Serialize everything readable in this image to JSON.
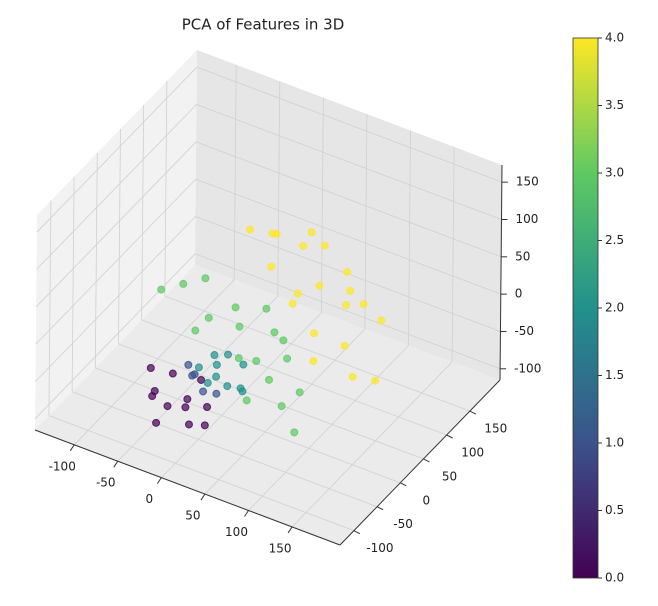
{
  "chart_data": {
    "type": "scatter3d",
    "title": "PCA of Features in 3D",
    "colormap": "viridis",
    "x": [
      -40,
      -20,
      0,
      -30,
      -10,
      10,
      -50,
      20,
      -25,
      5,
      -35,
      15,
      -5,
      10,
      -15,
      20,
      0,
      15,
      35,
      5,
      45,
      25,
      55,
      10,
      30,
      40,
      20,
      -60,
      -40,
      -20,
      30,
      60,
      80,
      100,
      70,
      40,
      90,
      20,
      110,
      60,
      0,
      50,
      120,
      -10,
      75,
      40,
      60,
      100,
      120,
      80,
      140,
      160,
      20,
      90,
      110,
      130,
      70,
      150,
      50,
      100,
      170,
      30,
      120,
      80,
      140
    ],
    "y": [
      -70,
      -80,
      -75,
      -50,
      -60,
      -90,
      -60,
      -70,
      -95,
      -55,
      -85,
      -65,
      -50,
      -60,
      -45,
      -50,
      -65,
      -40,
      -55,
      -60,
      -45,
      -35,
      -60,
      -50,
      -70,
      -30,
      -55,
      -20,
      -10,
      0,
      -20,
      -40,
      -50,
      -60,
      -20,
      -40,
      -30,
      -10,
      -40,
      -60,
      -30,
      0,
      -70,
      -40,
      -10,
      40,
      60,
      20,
      40,
      0,
      0,
      -20,
      20,
      50,
      -10,
      30,
      30,
      60,
      10,
      80,
      10,
      50,
      -30,
      40,
      40
    ],
    "z": [
      -55,
      -60,
      -45,
      -40,
      -70,
      -65,
      -35,
      -50,
      -75,
      -30,
      -50,
      -80,
      -30,
      -40,
      -25,
      -45,
      -20,
      -15,
      -25,
      -10,
      -30,
      0,
      -20,
      -35,
      -5,
      -10,
      10,
      40,
      50,
      60,
      30,
      10,
      0,
      -20,
      40,
      5,
      20,
      45,
      -10,
      -30,
      35,
      50,
      -40,
      20,
      25,
      120,
      100,
      90,
      60,
      70,
      40,
      20,
      130,
      120,
      50,
      90,
      60,
      40,
      100,
      70,
      0,
      110,
      30,
      140,
      70
    ],
    "c": [
      0,
      0,
      0,
      0,
      0,
      0,
      0,
      0,
      0,
      0,
      0,
      0,
      1,
      1,
      1,
      1,
      1,
      2,
      2,
      2,
      2,
      2,
      2,
      2,
      2,
      2,
      2,
      3,
      3,
      3,
      3,
      3,
      3,
      3,
      3,
      3,
      3,
      3,
      3,
      3,
      3,
      3,
      3,
      3,
      3,
      4,
      4,
      4,
      4,
      4,
      4,
      4,
      4,
      4,
      4,
      4,
      4,
      4,
      4,
      4,
      4,
      4,
      4,
      4,
      4
    ],
    "xlim": [
      -145,
      205
    ],
    "ylim": [
      -130,
      215
    ],
    "zlim": [
      -115,
      173
    ],
    "xticks": [
      -100,
      -50,
      0,
      50,
      100,
      150
    ],
    "yticks": [
      -100,
      -50,
      0,
      50,
      100,
      150
    ],
    "zticks": [
      -100,
      -50,
      0,
      50,
      100,
      150
    ],
    "clim": [
      0,
      4
    ],
    "cticks": [
      {
        "value": 0,
        "label": "0.0"
      },
      0.5,
      {
        "value": 1,
        "label": "1.0"
      },
      1.5,
      {
        "value": 2,
        "label": "2.0"
      },
      2.5,
      {
        "value": 3,
        "label": "3.0"
      },
      3.5,
      {
        "value": 4,
        "label": "4.0"
      }
    ],
    "grid": true
  }
}
